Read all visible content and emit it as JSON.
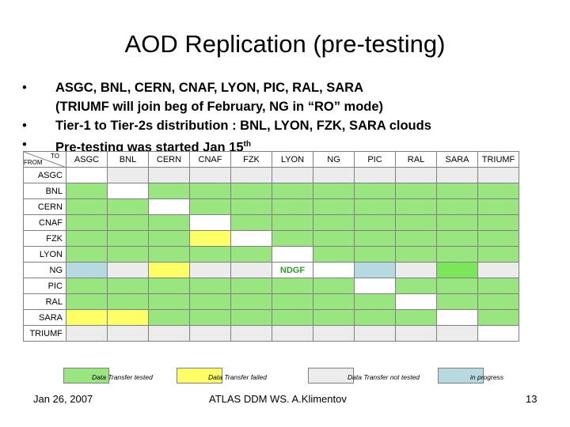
{
  "title": "AOD Replication (pre-testing)",
  "bullets": [
    {
      "line1": "ASGC, BNL, CERN, CNAF, LYON, PIC, RAL, SARA",
      "line2": "(TRIUMF will join beg of February, NG in “RO” mode)"
    },
    {
      "line1": "Tier-1 to Tier-2s distribution : BNL, LYON,  FZK, SARA clouds"
    },
    {
      "line1": "Pre-testing was started Jan 15",
      "sup": "th"
    }
  ],
  "bullet_glyph": "•",
  "matrix": {
    "corner_to": "TO",
    "corner_from": "FROM",
    "columns": [
      "ASGC",
      "BNL",
      "CERN",
      "CNAF",
      "FZK",
      "LYON",
      "NG",
      "PIC",
      "RAL",
      "SARA",
      "TRIUMF"
    ],
    "rows": [
      {
        "label": "ASGC",
        "cells": [
          "white",
          "grey",
          "grey",
          "grey",
          "grey",
          "grey",
          "grey",
          "grey",
          "grey",
          "grey",
          "grey"
        ]
      },
      {
        "label": "BNL",
        "cells": [
          "green",
          "white",
          "green",
          "green",
          "green",
          "green",
          "green",
          "green",
          "green",
          "green",
          "green"
        ]
      },
      {
        "label": "CERN",
        "cells": [
          "green",
          "green",
          "white",
          "green",
          "green",
          "green",
          "green",
          "green",
          "green",
          "green",
          "green"
        ]
      },
      {
        "label": "CNAF",
        "cells": [
          "green",
          "green",
          "green",
          "white",
          "green",
          "green",
          "green",
          "green",
          "green",
          "green",
          "green"
        ]
      },
      {
        "label": "FZK",
        "cells": [
          "green",
          "green",
          "green",
          "yellow",
          "white",
          "green",
          "green",
          "green",
          "green",
          "green",
          "green"
        ]
      },
      {
        "label": "LYON",
        "cells": [
          "green",
          "green",
          "green",
          "green",
          "green",
          "white",
          "green",
          "green",
          "green",
          "green",
          "green"
        ]
      },
      {
        "label": "NG",
        "cells": [
          "blue",
          "grey",
          "yellow",
          "grey",
          "grey",
          "ndgf",
          "white",
          "blue",
          "grey",
          "bright",
          "grey"
        ]
      },
      {
        "label": "PIC",
        "cells": [
          "green",
          "green",
          "green",
          "green",
          "green",
          "green",
          "green",
          "white",
          "green",
          "green",
          "green"
        ]
      },
      {
        "label": "RAL",
        "cells": [
          "green",
          "green",
          "green",
          "green",
          "green",
          "green",
          "green",
          "green",
          "white",
          "green",
          "green"
        ]
      },
      {
        "label": "SARA",
        "cells": [
          "yellow",
          "yellow",
          "green",
          "green",
          "green",
          "green",
          "green",
          "green",
          "green",
          "white",
          "green"
        ]
      },
      {
        "label": "TRIUMF",
        "cells": [
          "grey",
          "grey",
          "grey",
          "grey",
          "grey",
          "grey",
          "grey",
          "grey",
          "grey",
          "grey",
          "white"
        ]
      }
    ],
    "ndgf_label": "NDGF"
  },
  "colors": {
    "green": "#99e680",
    "yellow": "#ffff66",
    "grey": "#ececec",
    "blue": "#b7d9e0",
    "bright": "#7ce65a",
    "ndgf_text": "#2ba32b"
  },
  "legend": [
    {
      "color": "#99e680",
      "label": "Data Transfer tested"
    },
    {
      "color": "#ffff66",
      "label": "Data Transfer failed"
    },
    {
      "color": "#ececec",
      "label": "Data Transfer not tested"
    },
    {
      "color": "#b7d9e0",
      "label": "in progress"
    }
  ],
  "footer": {
    "date": "Jan  26, 2007",
    "center": "ATLAS DDM WS. A.Klimentov",
    "page": "13"
  }
}
